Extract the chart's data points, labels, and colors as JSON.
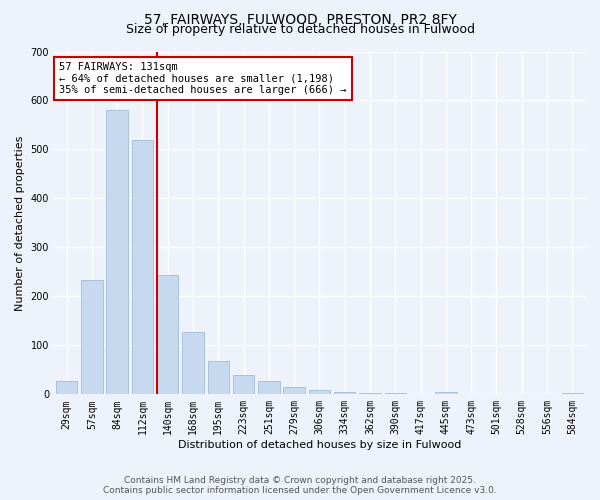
{
  "title": "57, FAIRWAYS, FULWOOD, PRESTON, PR2 8FY",
  "subtitle": "Size of property relative to detached houses in Fulwood",
  "xlabel": "Distribution of detached houses by size in Fulwood",
  "ylabel": "Number of detached properties",
  "categories": [
    "29sqm",
    "57sqm",
    "84sqm",
    "112sqm",
    "140sqm",
    "168sqm",
    "195sqm",
    "223sqm",
    "251sqm",
    "279sqm",
    "306sqm",
    "334sqm",
    "362sqm",
    "390sqm",
    "417sqm",
    "445sqm",
    "473sqm",
    "501sqm",
    "528sqm",
    "556sqm",
    "584sqm"
  ],
  "values": [
    28,
    234,
    580,
    519,
    243,
    128,
    68,
    40,
    27,
    14,
    8,
    4,
    3,
    2,
    1,
    5,
    0,
    0,
    0,
    0,
    3
  ],
  "bar_color": "#c6d9ee",
  "bar_edge_color": "#a0bdd8",
  "vline_color": "#cc0000",
  "annotation_text": "57 FAIRWAYS: 131sqm\n← 64% of detached houses are smaller (1,198)\n35% of semi-detached houses are larger (666) →",
  "annotation_box_color": "#ffffff",
  "annotation_box_edge_color": "#cc0000",
  "ylim": [
    0,
    700
  ],
  "yticks": [
    0,
    100,
    200,
    300,
    400,
    500,
    600,
    700
  ],
  "footer_line1": "Contains HM Land Registry data © Crown copyright and database right 2025.",
  "footer_line2": "Contains public sector information licensed under the Open Government Licence v3.0.",
  "background_color": "#eef2fb",
  "grid_color": "#ffffff",
  "title_fontsize": 10,
  "subtitle_fontsize": 9,
  "axis_label_fontsize": 8,
  "tick_fontsize": 7,
  "annotation_fontsize": 7.5,
  "footer_fontsize": 6.5
}
